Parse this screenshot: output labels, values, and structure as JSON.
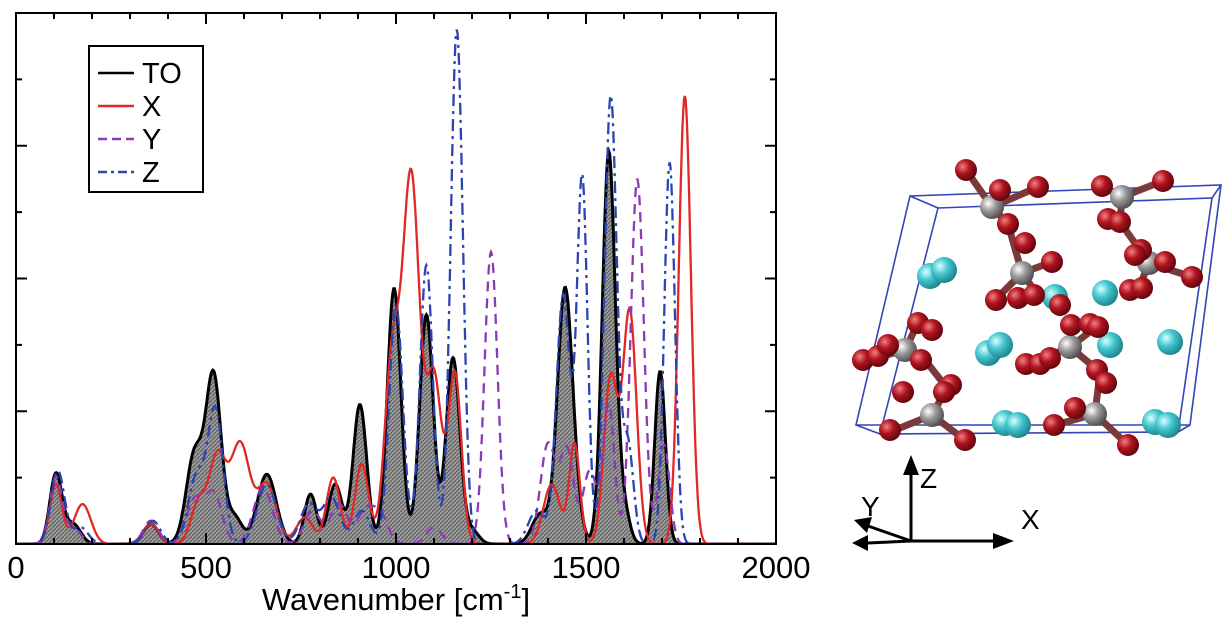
{
  "chart_data": {
    "type": "line",
    "title": "",
    "xlabel": "Wavenumber [cm",
    "xlabel_sup": "-1",
    "xlabel_end": "]",
    "ylabel": "",
    "xlim": [
      0,
      2000
    ],
    "ylim": [
      0,
      1.6
    ],
    "x_ticks": [
      "0",
      "500",
      "1000",
      "1500",
      "2000"
    ],
    "grid": false,
    "legend_position": "top-left",
    "series": [
      {
        "name": "TO",
        "color": "#000000",
        "dash": "solid",
        "filled": true,
        "fill": "#8c8c8c",
        "width": 3,
        "peaks": [
          [
            105,
            0.21,
            16
          ],
          [
            150,
            0.06,
            20
          ],
          [
            355,
            0.06,
            20
          ],
          [
            470,
            0.27,
            22
          ],
          [
            520,
            0.5,
            20
          ],
          [
            575,
            0.08,
            20
          ],
          [
            660,
            0.21,
            25
          ],
          [
            775,
            0.15,
            16
          ],
          [
            840,
            0.18,
            18
          ],
          [
            905,
            0.42,
            18
          ],
          [
            995,
            0.77,
            18
          ],
          [
            1080,
            0.69,
            18
          ],
          [
            1150,
            0.56,
            18
          ],
          [
            1200,
            0.04,
            18
          ],
          [
            1380,
            0.09,
            22
          ],
          [
            1445,
            0.77,
            20
          ],
          [
            1480,
            0.04,
            15
          ],
          [
            1560,
            1.18,
            17
          ],
          [
            1600,
            0.1,
            15
          ],
          [
            1695,
            0.52,
            14
          ]
        ]
      },
      {
        "name": "X",
        "color": "#e32626",
        "dash": "solid",
        "filled": false,
        "width": 2.3,
        "peaks": [
          [
            105,
            0.18,
            16
          ],
          [
            175,
            0.12,
            22
          ],
          [
            355,
            0.06,
            20
          ],
          [
            480,
            0.12,
            20
          ],
          [
            530,
            0.26,
            22
          ],
          [
            590,
            0.3,
            25
          ],
          [
            660,
            0.18,
            25
          ],
          [
            760,
            0.08,
            22
          ],
          [
            835,
            0.2,
            18
          ],
          [
            910,
            0.24,
            18
          ],
          [
            990,
            0.55,
            20
          ],
          [
            1040,
            1.1,
            22
          ],
          [
            1100,
            0.5,
            20
          ],
          [
            1155,
            0.51,
            17
          ],
          [
            1410,
            0.18,
            22
          ],
          [
            1470,
            0.3,
            14
          ],
          [
            1565,
            0.5,
            18
          ],
          [
            1615,
            0.7,
            18
          ],
          [
            1760,
            1.35,
            16
          ]
        ]
      },
      {
        "name": "Y",
        "color": "#8a3ab9",
        "dash": "10,7",
        "filled": false,
        "width": 2.3,
        "peaks": [
          [
            105,
            0.2,
            16
          ],
          [
            150,
            0.05,
            20
          ],
          [
            355,
            0.07,
            20
          ],
          [
            470,
            0.13,
            22
          ],
          [
            520,
            0.15,
            22
          ],
          [
            650,
            0.17,
            25
          ],
          [
            780,
            0.1,
            22
          ],
          [
            850,
            0.12,
            22
          ],
          [
            920,
            0.1,
            22
          ],
          [
            960,
            0.08,
            20
          ],
          [
            1100,
            0.05,
            20
          ],
          [
            1250,
            0.88,
            17
          ],
          [
            1400,
            0.3,
            20
          ],
          [
            1450,
            0.28,
            18
          ],
          [
            1510,
            0.22,
            18
          ],
          [
            1560,
            0.42,
            15
          ],
          [
            1635,
            1.1,
            17
          ],
          [
            1705,
            0.3,
            15
          ]
        ]
      },
      {
        "name": "Z",
        "color": "#2b44b3",
        "dash": "12,5,3,5",
        "filled": false,
        "width": 2.3,
        "peaks": [
          [
            110,
            0.22,
            18
          ],
          [
            170,
            0.05,
            20
          ],
          [
            360,
            0.07,
            20
          ],
          [
            475,
            0.2,
            22
          ],
          [
            525,
            0.4,
            20
          ],
          [
            660,
            0.18,
            25
          ],
          [
            770,
            0.12,
            22
          ],
          [
            830,
            0.14,
            22
          ],
          [
            910,
            0.1,
            22
          ],
          [
            1000,
            0.72,
            18
          ],
          [
            1080,
            0.84,
            17
          ],
          [
            1160,
            1.55,
            16
          ],
          [
            1370,
            0.1,
            22
          ],
          [
            1440,
            0.75,
            18
          ],
          [
            1490,
            1.1,
            14
          ],
          [
            1565,
            1.35,
            16
          ],
          [
            1610,
            0.3,
            15
          ],
          [
            1720,
            1.15,
            14
          ]
        ]
      }
    ]
  },
  "legend": {
    "entries": [
      "TO",
      "X",
      "Y",
      "Z"
    ]
  },
  "structure": {
    "axes_labels": {
      "x": "X",
      "y": "Y",
      "z": "Z"
    },
    "colors": {
      "oxygen": "#a3121b",
      "carbon": "#8e8e8e",
      "calcium": "#43c6cf",
      "cell": "#3445ba"
    }
  }
}
